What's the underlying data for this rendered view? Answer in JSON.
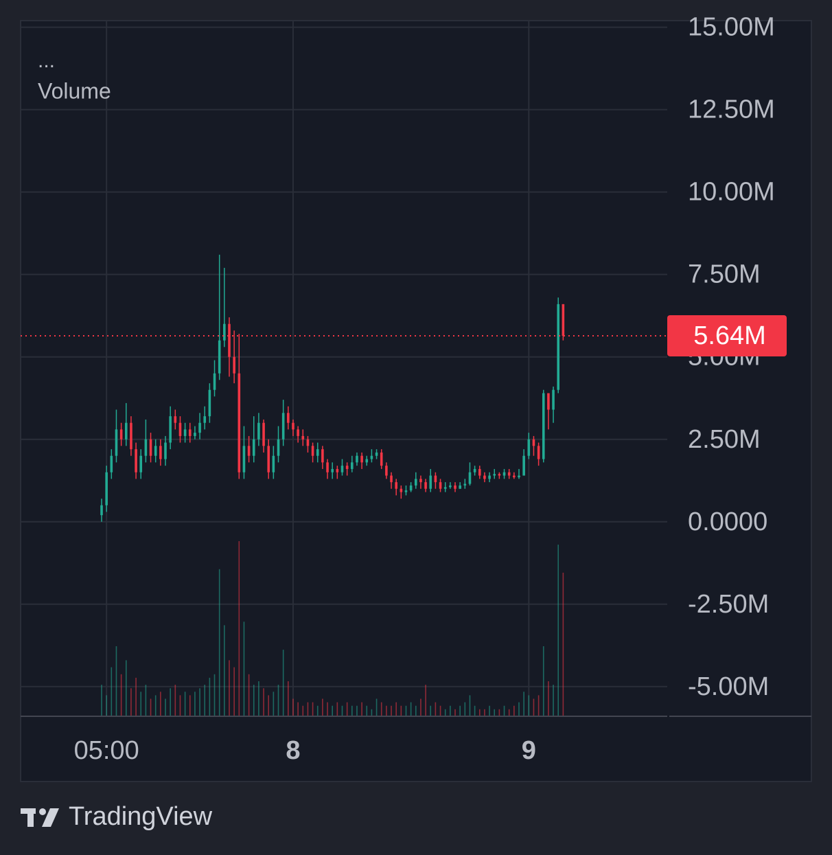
{
  "chart_data": {
    "type": "candlestick",
    "menu_label": "...",
    "indicator": "Volume",
    "brand": "TradingView",
    "up_color": "#22ab94",
    "down_color": "#f23645",
    "grid": true,
    "xlim": [
      -16.5,
      115.2
    ],
    "xticks": [
      {
        "value": 1,
        "label": "05:00"
      },
      {
        "value": 39,
        "label": "8"
      },
      {
        "value": 87,
        "label": "9"
      }
    ],
    "ylim": [
      -5900000.0,
      15200000.0
    ],
    "yticks": [
      {
        "value": 15000000.0,
        "label": "15.00M"
      },
      {
        "value": 12500000.0,
        "label": "12.50M"
      },
      {
        "value": 10000000.0,
        "label": "10.00M"
      },
      {
        "value": 7500000.0,
        "label": "7.50M"
      },
      {
        "value": 5000000.0,
        "label": "5.00M"
      },
      {
        "value": 2500000.0,
        "label": "2.50M"
      },
      {
        "value": 0,
        "label": "0.0000"
      },
      {
        "value": -2500000.0,
        "label": "-2.50M"
      },
      {
        "value": -5000000.0,
        "label": "-5.00M"
      }
    ],
    "last_price": {
      "value": 5640000.0,
      "label": "5.64M"
    },
    "open": [
      200000.0,
      500000.0,
      1500000.0,
      2000000.0,
      2800000.0,
      2500000.0,
      3000000.0,
      2200000.0,
      1500000.0,
      2000000.0,
      2500000.0,
      2000000.0,
      2300000.0,
      1900000.0,
      2400000.0,
      3200000.0,
      3000000.0,
      2600000.0,
      2800000.0,
      2600000.0,
      2700000.0,
      3000000.0,
      3200000.0,
      4000000.0,
      4500000.0,
      5500000.0,
      6000000.0,
      5000000.0,
      4500000.0,
      1500000.0,
      2300000.0,
      2000000.0,
      2500000.0,
      3000000.0,
      2300000.0,
      1500000.0,
      2000000.0,
      2500000.0,
      3300000.0,
      3000000.0,
      2800000.0,
      2600000.0,
      2500000.0,
      2300000.0,
      2000000.0,
      2200000.0,
      1800000.0,
      1500000.0,
      1600000.0,
      1500000.0,
      1700000.0,
      1600000.0,
      1800000.0,
      2000000.0,
      1800000.0,
      1900000.0,
      2000000.0,
      2100000.0,
      1700000.0,
      1400000.0,
      1200000.0,
      1000000.0,
      900000.0,
      950000.0,
      1100000.0,
      1300000.0,
      1200000.0,
      1000000.0,
      1400000.0,
      1200000.0,
      1000000.0,
      1050000.0,
      1100000.0,
      1000000.0,
      1100000.0,
      1150000.0,
      1500000.0,
      1600000.0,
      1400000.0,
      1300000.0,
      1400000.0,
      1450000.0,
      1400000.0,
      1500000.0,
      1400000.0,
      1350000.0,
      1400000.0,
      2000000.0,
      2500000.0,
      2300000.0,
      1900000.0,
      3900000.0,
      3400000.0,
      4000000.0,
      6600000.0
    ],
    "high": [
      700000.0,
      1700000.0,
      2200000.0,
      3400000.0,
      3000000.0,
      3600000.0,
      3200000.0,
      2400000.0,
      2200000.0,
      3100000.0,
      2700000.0,
      2500000.0,
      2500000.0,
      2600000.0,
      3500000.0,
      3400000.0,
      3200000.0,
      3000000.0,
      3000000.0,
      2900000.0,
      3300000.0,
      3500000.0,
      4200000.0,
      4900000.0,
      8100000.0,
      7700000.0,
      6200000.0,
      5800000.0,
      5700000.0,
      2900000.0,
      2600000.0,
      3200000.0,
      3300000.0,
      3100000.0,
      2500000.0,
      2300000.0,
      2900000.0,
      3700000.0,
      3500000.0,
      3100000.0,
      2900000.0,
      2800000.0,
      2600000.0,
      2400000.0,
      2400000.0,
      2300000.0,
      1900000.0,
      1800000.0,
      1700000.0,
      1900000.0,
      1800000.0,
      2000000.0,
      2100000.0,
      2100000.0,
      2000000.0,
      2200000.0,
      2200000.0,
      2200000.0,
      1800000.0,
      1500000.0,
      1300000.0,
      1100000.0,
      1100000.0,
      1200000.0,
      1500000.0,
      1400000.0,
      1300000.0,
      1600000.0,
      1500000.0,
      1300000.0,
      1200000.0,
      1200000.0,
      1200000.0,
      1200000.0,
      1300000.0,
      1800000.0,
      1700000.0,
      1700000.0,
      1500000.0,
      1500000.0,
      1600000.0,
      1500000.0,
      1600000.0,
      1600000.0,
      1500000.0,
      1600000.0,
      2200000.0,
      2700000.0,
      2600000.0,
      2400000.0,
      4000000.0,
      3900000.0,
      4100000.0,
      6800000.0,
      6600000.0
    ],
    "low": [
      0,
      300000.0,
      1300000.0,
      1800000.0,
      2300000.0,
      2300000.0,
      2000000.0,
      1300000.0,
      1300000.0,
      1800000.0,
      1800000.0,
      1800000.0,
      1700000.0,
      1700000.0,
      2200000.0,
      2800000.0,
      2400000.0,
      2400000.0,
      2400000.0,
      2500000.0,
      2500000.0,
      2800000.0,
      3000000.0,
      3800000.0,
      4300000.0,
      5300000.0,
      4400000.0,
      4200000.0,
      1300000.0,
      1300000.0,
      1800000.0,
      1800000.0,
      2300000.0,
      2100000.0,
      1300000.0,
      1300000.0,
      1800000.0,
      2300000.0,
      2800000.0,
      2600000.0,
      2400000.0,
      2300000.0,
      2100000.0,
      1800000.0,
      1800000.0,
      1600000.0,
      1300000.0,
      1300000.0,
      1300000.0,
      1400000.0,
      1400000.0,
      1500000.0,
      1700000.0,
      1600000.0,
      1700000.0,
      1800000.0,
      1900000.0,
      1600000.0,
      1300000.0,
      1000000.0,
      800000.0,
      700000.0,
      800000.0,
      900000.0,
      1000000.0,
      1000000.0,
      900000.0,
      900000.0,
      1000000.0,
      900000.0,
      900000.0,
      1000000.0,
      900000.0,
      1000000.0,
      1000000.0,
      1100000.0,
      1400000.0,
      1300000.0,
      1200000.0,
      1200000.0,
      1300000.0,
      1300000.0,
      1300000.0,
      1300000.0,
      1300000.0,
      1300000.0,
      1400000.0,
      1900000.0,
      2000000.0,
      1700000.0,
      1800000.0,
      2800000.0,
      3000000.0,
      3900000.0,
      5500000.0
    ],
    "close": [
      500000.0,
      1500000.0,
      2000000.0,
      2800000.0,
      2500000.0,
      3000000.0,
      2200000.0,
      1500000.0,
      2000000.0,
      2500000.0,
      2000000.0,
      2300000.0,
      1900000.0,
      2400000.0,
      3200000.0,
      3000000.0,
      2600000.0,
      2800000.0,
      2600000.0,
      2700000.0,
      3000000.0,
      3200000.0,
      4000000.0,
      4500000.0,
      5500000.0,
      6000000.0,
      5000000.0,
      4500000.0,
      1500000.0,
      2300000.0,
      2000000.0,
      2500000.0,
      3000000.0,
      2300000.0,
      1500000.0,
      2000000.0,
      2500000.0,
      3300000.0,
      3000000.0,
      2800000.0,
      2600000.0,
      2500000.0,
      2300000.0,
      2000000.0,
      2200000.0,
      1800000.0,
      1500000.0,
      1600000.0,
      1500000.0,
      1700000.0,
      1600000.0,
      1800000.0,
      2000000.0,
      1800000.0,
      1900000.0,
      2000000.0,
      2100000.0,
      1700000.0,
      1400000.0,
      1200000.0,
      1000000.0,
      900000.0,
      950000.0,
      1100000.0,
      1300000.0,
      1200000.0,
      1000000.0,
      1400000.0,
      1200000.0,
      1000000.0,
      1050000.0,
      1100000.0,
      1000000.0,
      1100000.0,
      1150000.0,
      1500000.0,
      1600000.0,
      1400000.0,
      1300000.0,
      1400000.0,
      1450000.0,
      1400000.0,
      1500000.0,
      1400000.0,
      1350000.0,
      1400000.0,
      2000000.0,
      2500000.0,
      2300000.0,
      1900000.0,
      3900000.0,
      3400000.0,
      4000000.0,
      6600000.0,
      5640000.0
    ],
    "volume": [
      45,
      30,
      70,
      100,
      60,
      80,
      40,
      55,
      35,
      45,
      25,
      30,
      35,
      25,
      40,
      45,
      30,
      35,
      30,
      35,
      40,
      45,
      55,
      60,
      210,
      130,
      80,
      70,
      250,
      135,
      60,
      45,
      50,
      40,
      30,
      35,
      45,
      95,
      50,
      25,
      20,
      15,
      20,
      20,
      15,
      25,
      20,
      15,
      20,
      15,
      20,
      15,
      15,
      20,
      15,
      10,
      25,
      20,
      15,
      15,
      20,
      15,
      15,
      20,
      15,
      25,
      45,
      15,
      20,
      15,
      10,
      15,
      10,
      15,
      20,
      30,
      15,
      10,
      10,
      15,
      10,
      10,
      15,
      10,
      15,
      20,
      35,
      30,
      25,
      30,
      100,
      50,
      45,
      245,
      205
    ]
  }
}
